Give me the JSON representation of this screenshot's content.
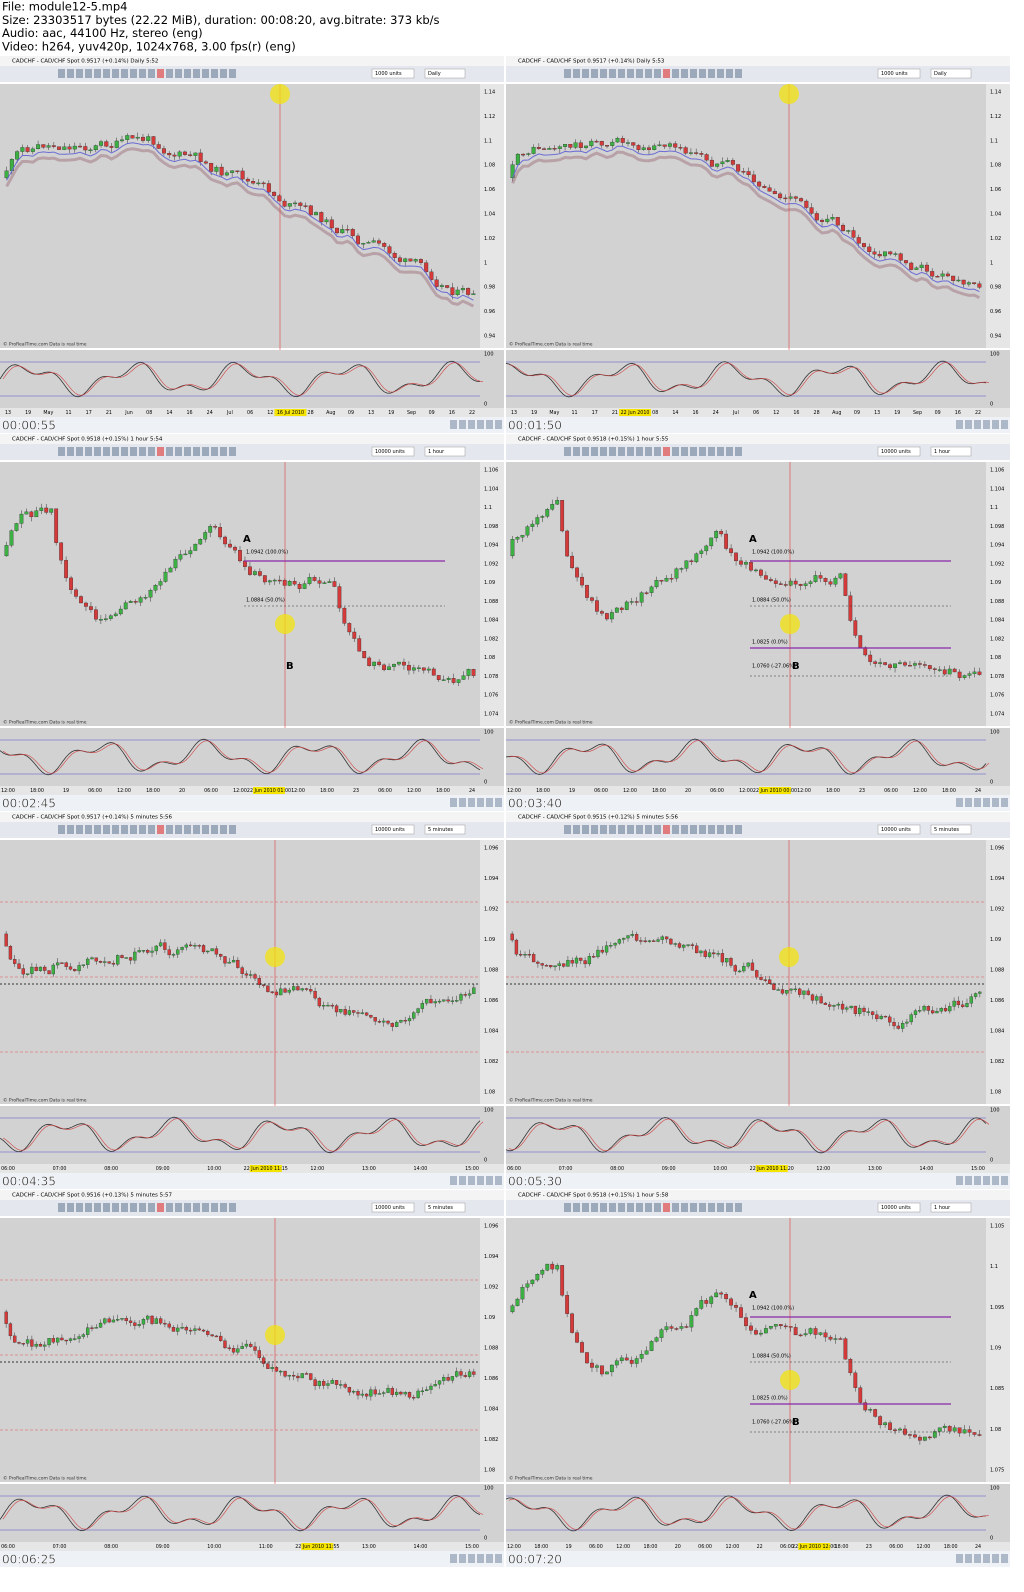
{
  "header": {
    "lines": [
      "File: module12-5.mp4",
      "Size: 23303517 bytes (22.22 MiB), duration: 00:08:20, avg.bitrate: 373 kb/s",
      "Audio: aac, 44100 Hz, stereo (eng)",
      "Video: h264, yuv420p, 1024x768, 3.00 fps(r) (eng)"
    ]
  },
  "footer_note": "© ProRealTime.com Data is real time",
  "frames": [
    {
      "title": "CADCHF - CAD/CHF Spot 0.9517 (+0.14%) Daily 5:52",
      "units": "1000 units",
      "period": "Daily",
      "timestamp": "00:00:55",
      "yaxis": [
        "1.14",
        "1.12",
        "1.1",
        "1.08",
        "1.06",
        "1.04",
        "1.02",
        "1",
        "0.98",
        "0.96",
        "0.94"
      ],
      "xaxis": [
        "13",
        "19",
        "May",
        "11",
        "17",
        "21",
        "Jun",
        "08",
        "14",
        "16",
        "24",
        "Jul",
        "06",
        "12",
        "16 Jul 2010",
        "28",
        "Aug",
        "09",
        "13",
        "19",
        "Sep",
        "09",
        "16",
        "22"
      ],
      "stoch": [
        "100",
        "0"
      ],
      "annotations": []
    },
    {
      "title": "CADCHF - CAD/CHF Spot 0.9517 (+0.14%) Daily 5:53",
      "units": "1000 units",
      "period": "Daily",
      "timestamp": "00:01:50",
      "yaxis": [
        "1.14",
        "1.12",
        "1.1",
        "1.08",
        "1.06",
        "1.04",
        "1.02",
        "1",
        "0.98",
        "0.96",
        "0.94"
      ],
      "xaxis": [
        "13",
        "19",
        "May",
        "11",
        "17",
        "21",
        "22 Jun 2010",
        "08",
        "14",
        "16",
        "24",
        "Jul",
        "06",
        "12",
        "16",
        "28",
        "Aug",
        "09",
        "13",
        "19",
        "Sep",
        "09",
        "16",
        "22"
      ],
      "stoch": [
        "100",
        "0"
      ],
      "annotations": []
    },
    {
      "title": "CADCHF - CAD/CHF Spot 0.9518 (+0.15%) 1 hour 5:54",
      "units": "10000 units",
      "period": "1 hour",
      "timestamp": "00:02:45",
      "yaxis": [
        "1.106",
        "1.104",
        "1.1",
        "1.098",
        "1.094",
        "1.092",
        "1.09",
        "1.088",
        "1.084",
        "1.082",
        "1.08",
        "1.078",
        "1.076",
        "1.074"
      ],
      "xaxis": [
        "12:00",
        "18:00",
        "19",
        "06:00",
        "12:00",
        "18:00",
        "20",
        "06:00",
        "12:00",
        "22 Jun 2010 01:00",
        "12:00",
        "18:00",
        "23",
        "06:00",
        "12:00",
        "18:00",
        "24"
      ],
      "stoch": [
        "100",
        "0"
      ],
      "annotations": [
        "A",
        "B",
        "1.0942 (100.0%)",
        "1.0884 (50.0%)"
      ]
    },
    {
      "title": "CADCHF - CAD/CHF Spot 0.9518 (+0.15%) 1 hour 5:55",
      "units": "10000 units",
      "period": "1 hour",
      "timestamp": "00:03:40",
      "yaxis": [
        "1.106",
        "1.104",
        "1.1",
        "1.098",
        "1.094",
        "1.092",
        "1.09",
        "1.088",
        "1.084",
        "1.082",
        "1.08",
        "1.078",
        "1.076",
        "1.074"
      ],
      "xaxis": [
        "12:00",
        "18:00",
        "19",
        "06:00",
        "12:00",
        "18:00",
        "20",
        "06:00",
        "12:00",
        "22 Jun 2010 00:00",
        "12:00",
        "18:00",
        "23",
        "06:00",
        "12:00",
        "18:00",
        "24"
      ],
      "stoch": [
        "100",
        "0"
      ],
      "annotations": [
        "A",
        "B",
        "1.0942 (100.0%)",
        "1.0884 (50.0%)",
        "1.0825 (0.0%)",
        "1.0760 (-27.06%)"
      ]
    },
    {
      "title": "CADCHF - CAD/CHF Spot 0.9517 (+0.14%) 5 minutes 5:56",
      "units": "10000 units",
      "period": "5 minutes",
      "timestamp": "00:04:35",
      "yaxis": [
        "1.096",
        "1.094",
        "1.092",
        "1.09",
        "1.088",
        "1.086",
        "1.084",
        "1.082",
        "1.08"
      ],
      "xaxis": [
        "06:00",
        "07:00",
        "08:00",
        "09:00",
        "10:00",
        "22 Jun 2010 11:15",
        "12:00",
        "13:00",
        "14:00",
        "15:00"
      ],
      "stoch": [
        "100",
        "0"
      ],
      "annotations": []
    },
    {
      "title": "CADCHF - CAD/CHF Spot 0.9515 (+0.12%) 5 minutes 5:56",
      "units": "10000 units",
      "period": "5 minutes",
      "timestamp": "00:05:30",
      "yaxis": [
        "1.096",
        "1.094",
        "1.092",
        "1.09",
        "1.088",
        "1.086",
        "1.084",
        "1.082",
        "1.08"
      ],
      "xaxis": [
        "06:00",
        "07:00",
        "08:00",
        "09:00",
        "10:00",
        "22 Jun 2010 11:20",
        "12:00",
        "13:00",
        "14:00",
        "15:00"
      ],
      "stoch": [
        "100",
        "0"
      ],
      "annotations": []
    },
    {
      "title": "CADCHF - CAD/CHF Spot 0.9516 (+0.13%) 5 minutes 5:57",
      "units": "10000 units",
      "period": "5 minutes",
      "timestamp": "00:06:25",
      "yaxis": [
        "1.096",
        "1.094",
        "1.092",
        "1.09",
        "1.088",
        "1.086",
        "1.084",
        "1.082",
        "1.08"
      ],
      "xaxis": [
        "06:00",
        "07:00",
        "08:00",
        "09:00",
        "10:00",
        "11:00",
        "22 Jun 2010 11:55",
        "13:00",
        "14:00",
        "15:00"
      ],
      "stoch": [
        "100",
        "0"
      ],
      "annotations": []
    },
    {
      "title": "CADCHF - CAD/CHF Spot 0.9518 (+0.15%) 1 hour 5:58",
      "units": "10000 units",
      "period": "1 hour",
      "timestamp": "00:07:20",
      "yaxis": [
        "1.105",
        "1.1",
        "1.095",
        "1.09",
        "1.085",
        "1.08",
        "1.075"
      ],
      "xaxis": [
        "12:00",
        "18:00",
        "19",
        "06:00",
        "12:00",
        "18:00",
        "20",
        "06:00",
        "12:00",
        "22",
        "06:00",
        "22 Jun 2010 12:00",
        "18:00",
        "23",
        "06:00",
        "12:00",
        "18:00",
        "24"
      ],
      "stoch": [
        "100",
        "0"
      ],
      "annotations": [
        "A",
        "B",
        "1.0942 (100.0%)",
        "1.0884 (50.0%)",
        "1.0825 (0.0%)",
        "1.0760 (-27.06%)"
      ]
    }
  ]
}
